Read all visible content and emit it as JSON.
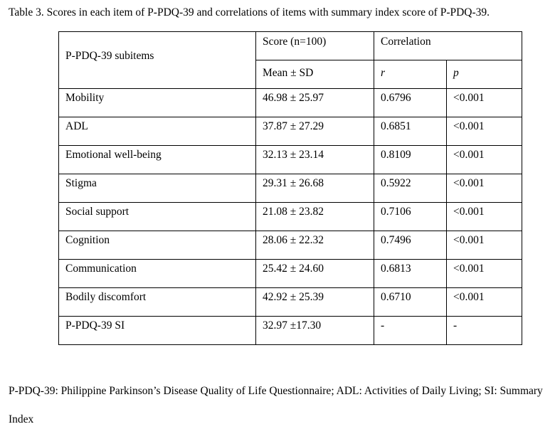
{
  "caption": "Table 3. Scores in each item of P-PDQ-39 and correlations of items with summary index score of P-PDQ-39.",
  "table": {
    "header": {
      "subitems_label": "P-PDQ-39 subitems",
      "score_label": "Score (n=100)",
      "correlation_label": "Correlation",
      "mean_sd_label": "Mean ± SD",
      "r_label": "r",
      "p_label": "p"
    },
    "rows": [
      {
        "item": "Mobility",
        "score": "46.98 ± 25.97",
        "r": "0.6796",
        "p": "<0.001"
      },
      {
        "item": "ADL",
        "score": "37.87 ± 27.29",
        "r": "0.6851",
        "p": "<0.001"
      },
      {
        "item": "Emotional well-being",
        "score": "32.13 ± 23.14",
        "r": "0.8109",
        "p": "<0.001"
      },
      {
        "item": "Stigma",
        "score": "29.31 ± 26.68",
        "r": "0.5922",
        "p": "<0.001"
      },
      {
        "item": "Social support",
        "score": "21.08 ± 23.82",
        "r": "0.7106",
        "p": "<0.001"
      },
      {
        "item": "Cognition",
        "score": "28.06 ± 22.32",
        "r": "0.7496",
        "p": "<0.001"
      },
      {
        "item": "Communication",
        "score": "25.42 ± 24.60",
        "r": "0.6813",
        "p": "<0.001"
      },
      {
        "item": "Bodily discomfort",
        "score": "42.92 ± 25.39",
        "r": "0.6710",
        "p": "<0.001"
      },
      {
        "item": "P-PDQ-39 SI",
        "score": "32.97 ±17.30",
        "r": "-",
        "p": "-"
      }
    ]
  },
  "footnote": "P-PDQ-39: Philippine Parkinson’s Disease Quality of Life Questionnaire; ADL: Activities of Daily Living; SI: Summary Index"
}
